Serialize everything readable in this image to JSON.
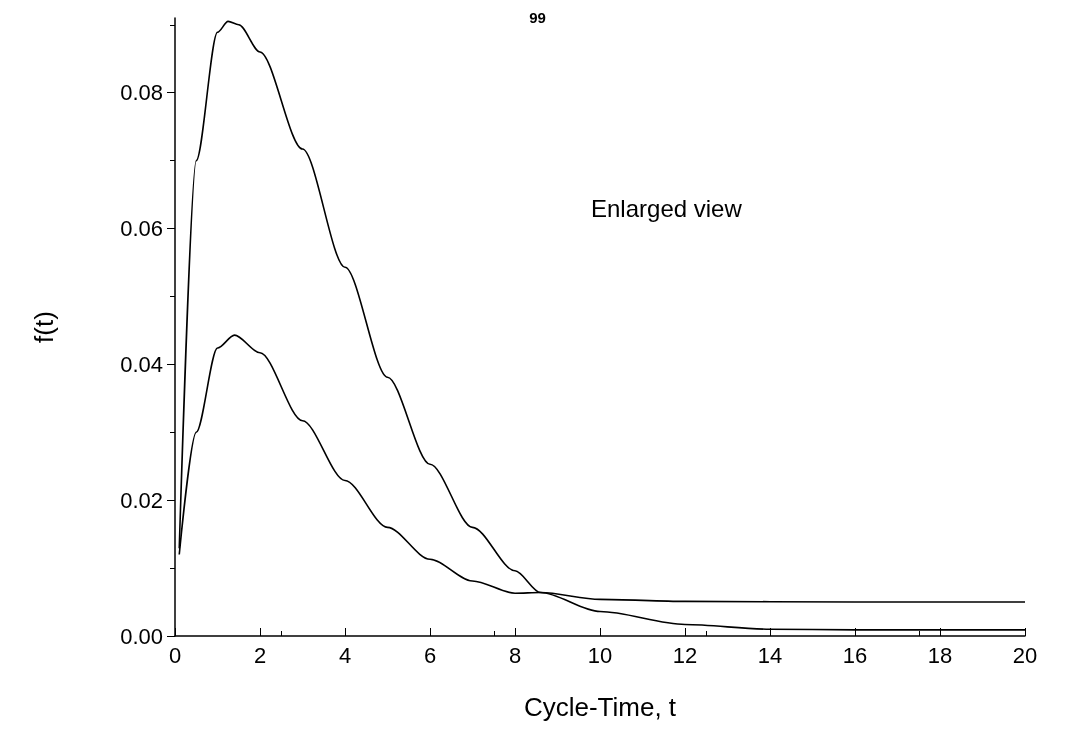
{
  "chart_data": {
    "type": "line",
    "xlabel": "Cycle-Time, t",
    "ylabel": "f(t)",
    "annotations": [
      "99",
      "Enlarged view"
    ],
    "xlim": [
      0,
      20
    ],
    "ylim": [
      0,
      0.091
    ],
    "xticks": [
      0,
      2,
      4,
      6,
      8,
      10,
      12,
      14,
      16,
      18,
      20
    ],
    "yticks": [
      {
        "value": 0,
        "label": "0.00"
      },
      {
        "value": 0.02,
        "label": "0.02"
      },
      {
        "value": 0.04,
        "label": "0.04"
      },
      {
        "value": 0.06,
        "label": "0.06"
      },
      {
        "value": 0.08,
        "label": "0.08"
      }
    ],
    "grid": false,
    "marker": "none",
    "line_style": "solid",
    "series": [
      {
        "color": "#000000",
        "x": [
          0.1,
          0.5,
          1,
          1.25,
          1.5,
          2,
          3,
          4,
          5,
          6,
          7,
          8,
          8.6,
          10,
          12,
          14,
          16,
          20
        ],
        "values": [
          0.0129,
          0.07,
          0.0889,
          0.0905,
          0.09,
          0.086,
          0.0717,
          0.0543,
          0.0381,
          0.0253,
          0.016,
          0.0096,
          0.0064,
          0.0036,
          0.0017,
          0.001,
          0.0009,
          0.0009
        ]
      },
      {
        "color": "#000000",
        "x": [
          0.1,
          0.5,
          1,
          1.4,
          2,
          3,
          4,
          5,
          6,
          7,
          8,
          8.6,
          10,
          12,
          16,
          20
        ],
        "values": [
          0.012,
          0.03,
          0.0424,
          0.0443,
          0.0417,
          0.0317,
          0.0229,
          0.016,
          0.0113,
          0.0081,
          0.0063,
          0.0064,
          0.0054,
          0.0051,
          0.005,
          0.005
        ]
      }
    ]
  }
}
